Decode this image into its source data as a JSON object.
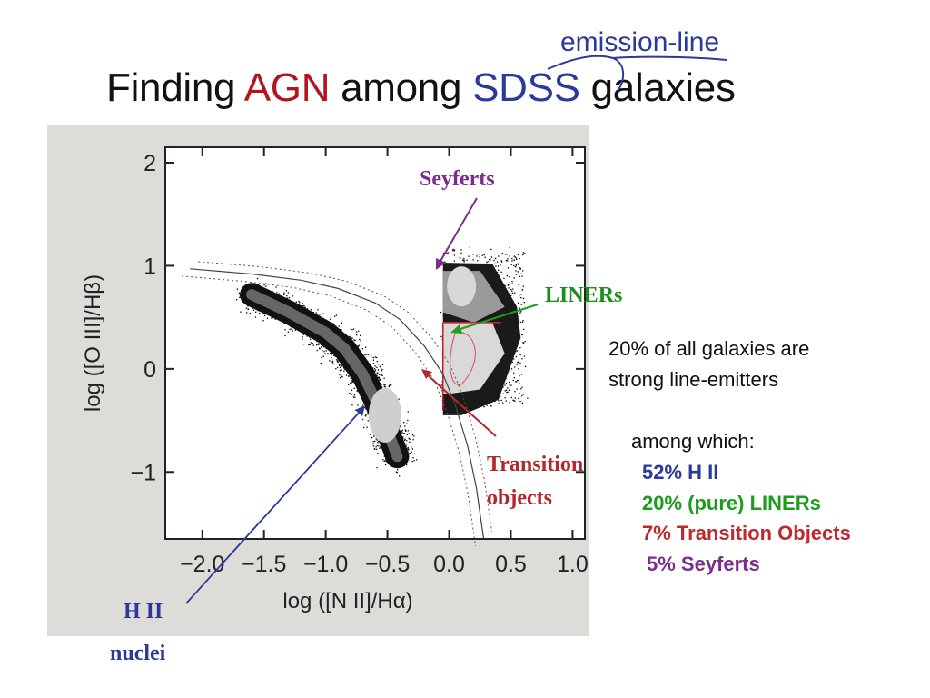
{
  "slide": {
    "title_part1": "Finding ",
    "title_agn": "AGN",
    "title_part2": " among ",
    "title_sdss": "SDSS",
    "title_part3": " galaxies",
    "emission_note": "emission-line"
  },
  "annotations": {
    "seyferts": "Seyferts",
    "liners": "LINERs",
    "transition_line1": "Transition",
    "transition_line2": "objects",
    "hii_line1": "H II",
    "hii_line2": "nuclei"
  },
  "notes": {
    "line1": "20% of all galaxies are",
    "line2": "strong line-emitters",
    "line3": "among which:",
    "stat_hii": "52% H II",
    "stat_liners": "20% (pure) LINERs",
    "stat_transition": "7% Transition Objects",
    "stat_seyferts": "5% Seyferts"
  },
  "colors": {
    "agn": "#b3141e",
    "sdss": "#2b3a9a",
    "seyferts": "#7b2d8e",
    "liners": "#1e8c1e",
    "transition": "#b3282d",
    "hii": "#2b3a9a",
    "plot_background": "#dddcd8"
  },
  "chart_data": {
    "type": "scatter",
    "title": "",
    "xlabel": "log ([N II]/Hα)",
    "ylabel": "log ([O III]/Hβ)",
    "xlim": [
      -2.3,
      1.1
    ],
    "ylim": [
      -1.65,
      2.15
    ],
    "x_ticks": [
      -2.0,
      -1.5,
      -1.0,
      -0.5,
      0.0,
      0.5,
      1.0
    ],
    "x_tick_labels": [
      "−2.0",
      "−1.5",
      "−1.0",
      "−0.5",
      "0.0",
      "0.5",
      "1.0"
    ],
    "y_ticks": [
      -1,
      0,
      1,
      2
    ],
    "y_tick_labels": [
      "−1",
      "0",
      "1",
      "2"
    ],
    "grid": false,
    "legend": "none",
    "regions": [
      {
        "name": "HII",
        "label": "H II nuclei",
        "color": "#2b3a9a",
        "point": [
          -0.55,
          -0.5
        ]
      },
      {
        "name": "Seyferts",
        "label": "Seyferts",
        "color": "#7b2d8e",
        "point": [
          0.05,
          0.85
        ]
      },
      {
        "name": "LINERs",
        "label": "LINERs",
        "color": "#1e8c1e",
        "point": [
          0.15,
          0.25
        ]
      },
      {
        "name": "Transition",
        "label": "Transition objects",
        "color": "#b3282d",
        "point": [
          -0.05,
          0.1
        ]
      }
    ],
    "density_ridge": [
      [
        -1.6,
        0.72
      ],
      [
        -1.3,
        0.55
      ],
      [
        -1.0,
        0.35
      ],
      [
        -0.85,
        0.2
      ],
      [
        -0.7,
        -0.05
      ],
      [
        -0.6,
        -0.3
      ],
      [
        -0.5,
        -0.6
      ],
      [
        -0.42,
        -0.85
      ]
    ],
    "demarcation_curve": [
      [
        -2.1,
        0.97
      ],
      [
        -1.6,
        0.92
      ],
      [
        -1.2,
        0.86
      ],
      [
        -0.9,
        0.78
      ],
      [
        -0.6,
        0.64
      ],
      [
        -0.4,
        0.48
      ],
      [
        -0.2,
        0.22
      ],
      [
        -0.05,
        -0.05
      ],
      [
        0.05,
        -0.35
      ],
      [
        0.15,
        -0.75
      ],
      [
        0.22,
        -1.15
      ],
      [
        0.28,
        -1.65
      ]
    ]
  }
}
